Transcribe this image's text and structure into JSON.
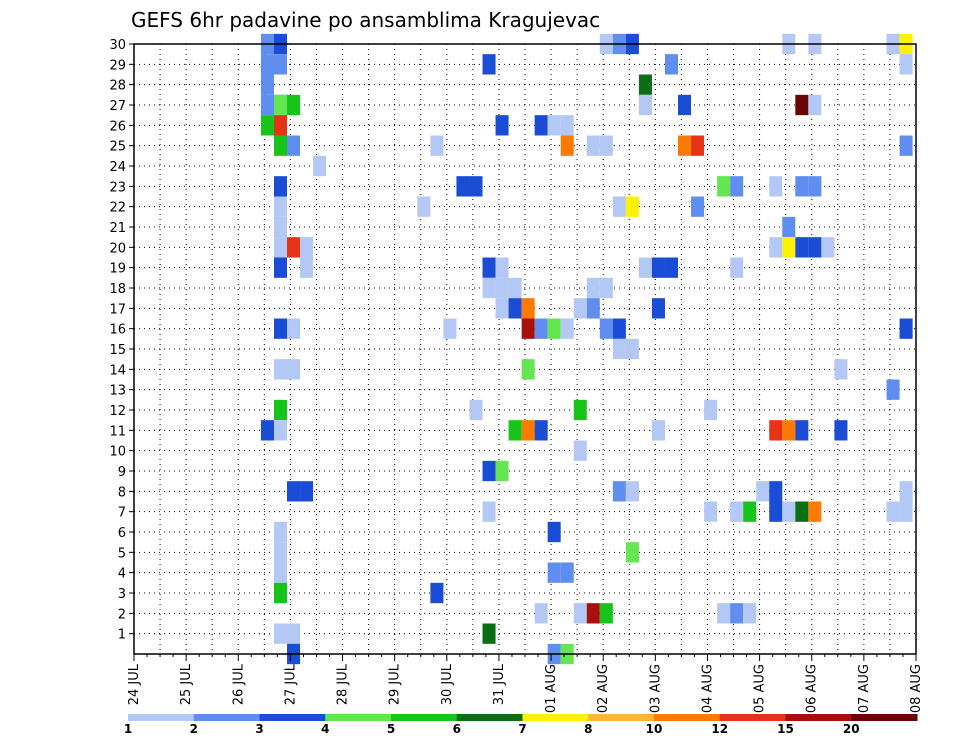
{
  "chart_data": {
    "type": "heatmap",
    "title": "GEFS 6hr padavine po ansamblima Kragujevac",
    "y_ticks": [
      1,
      2,
      3,
      4,
      5,
      6,
      7,
      8,
      9,
      10,
      11,
      12,
      13,
      14,
      15,
      16,
      17,
      18,
      19,
      20,
      21,
      22,
      23,
      24,
      25,
      26,
      27,
      28,
      29,
      30
    ],
    "y_range": [
      0,
      30
    ],
    "x_ticks": [
      "24 JUL",
      "25 JUL",
      "26 JUL",
      "27 JUL",
      "28 JUL",
      "29 JUL",
      "30 JUL",
      "31 JUL",
      "01 AUG",
      "02 AUG",
      "03 AUG",
      "04 AUG",
      "05 AUG",
      "06 AUG",
      "07 AUG",
      "08 AUG"
    ],
    "x_range_days": [
      0,
      15
    ],
    "grid": true,
    "legend": {
      "placement": "bottom",
      "labels": [
        "1",
        "2",
        "3",
        "4",
        "5",
        "6",
        "7",
        "8",
        "10",
        "12",
        "15",
        "20"
      ],
      "colors": [
        "#b4c8f5",
        "#5f8ef0",
        "#1a4cd6",
        "#64e650",
        "#16c41a",
        "#0a6e14",
        "#fff200",
        "#ffb43c",
        "#ff7a00",
        "#e63217",
        "#a8100e",
        "#6a0505"
      ]
    },
    "cells": [
      [
        2.56,
        30,
        1
      ],
      [
        2.81,
        30,
        2
      ],
      [
        2.81,
        29,
        1
      ],
      [
        2.56,
        29,
        1
      ],
      [
        2.56,
        28,
        1
      ],
      [
        2.56,
        27,
        1
      ],
      [
        2.81,
        27,
        2
      ],
      [
        2.81,
        27,
        3
      ],
      [
        3.06,
        27,
        4
      ],
      [
        2.56,
        26,
        4
      ],
      [
        2.81,
        26,
        9
      ],
      [
        2.81,
        25,
        4
      ],
      [
        3.06,
        25,
        1
      ],
      [
        2.81,
        23,
        2
      ],
      [
        2.81,
        22,
        0
      ],
      [
        2.81,
        21,
        0
      ],
      [
        2.81,
        20,
        0
      ],
      [
        3.06,
        20,
        9
      ],
      [
        3.31,
        20,
        0
      ],
      [
        2.81,
        19,
        2
      ],
      [
        3.31,
        19,
        0
      ],
      [
        2.81,
        16,
        2
      ],
      [
        3.06,
        16,
        0
      ],
      [
        2.81,
        14,
        0
      ],
      [
        3.06,
        14,
        0
      ],
      [
        2.81,
        12,
        4
      ],
      [
        2.81,
        11,
        0
      ],
      [
        2.56,
        11,
        2
      ],
      [
        3.06,
        8,
        2
      ],
      [
        3.31,
        8,
        2
      ],
      [
        2.81,
        6,
        0
      ],
      [
        2.81,
        5,
        0
      ],
      [
        2.81,
        4,
        0
      ],
      [
        2.81,
        3,
        4
      ],
      [
        2.81,
        1,
        0
      ],
      [
        3.06,
        1,
        0
      ],
      [
        3.06,
        0,
        2
      ],
      [
        3.56,
        24,
        0
      ],
      [
        5.81,
        25,
        0
      ],
      [
        5.56,
        22,
        0
      ],
      [
        6.06,
        16,
        0
      ],
      [
        5.81,
        3,
        2
      ],
      [
        6.31,
        23,
        2
      ],
      [
        6.56,
        23,
        2
      ],
      [
        6.81,
        29,
        2
      ],
      [
        7.06,
        26,
        2
      ],
      [
        6.81,
        19,
        2
      ],
      [
        7.06,
        19,
        0
      ],
      [
        6.81,
        18,
        0
      ],
      [
        7.06,
        18,
        0
      ],
      [
        7.31,
        18,
        0
      ],
      [
        7.06,
        17,
        0
      ],
      [
        7.31,
        17,
        2
      ],
      [
        7.56,
        17,
        8
      ],
      [
        7.56,
        16,
        10
      ],
      [
        7.81,
        16,
        1
      ],
      [
        8.06,
        16,
        3
      ],
      [
        8.31,
        16,
        0
      ],
      [
        7.56,
        14,
        3
      ],
      [
        6.56,
        12,
        0
      ],
      [
        7.31,
        11,
        4
      ],
      [
        7.56,
        11,
        8
      ],
      [
        6.81,
        9,
        2
      ],
      [
        7.06,
        9,
        3
      ],
      [
        6.81,
        7,
        0
      ],
      [
        6.81,
        1,
        5
      ],
      [
        7.81,
        26,
        2
      ],
      [
        8.06,
        26,
        0
      ],
      [
        8.31,
        26,
        0
      ],
      [
        8.31,
        25,
        8
      ],
      [
        8.81,
        25,
        0
      ],
      [
        9.06,
        25,
        0
      ],
      [
        8.81,
        18,
        0
      ],
      [
        9.06,
        18,
        0
      ],
      [
        8.56,
        17,
        0
      ],
      [
        8.81,
        17,
        1
      ],
      [
        9.06,
        16,
        1
      ],
      [
        9.31,
        16,
        2
      ],
      [
        9.31,
        15,
        0
      ],
      [
        9.56,
        15,
        0
      ],
      [
        8.56,
        12,
        4
      ],
      [
        7.81,
        11,
        2
      ],
      [
        8.56,
        10,
        0
      ],
      [
        9.31,
        8,
        1
      ],
      [
        9.56,
        8,
        0
      ],
      [
        8.06,
        6,
        2
      ],
      [
        9.56,
        5,
        3
      ],
      [
        8.06,
        4,
        1
      ],
      [
        8.31,
        4,
        1
      ],
      [
        7.81,
        2,
        0
      ],
      [
        8.56,
        2,
        0
      ],
      [
        8.81,
        2,
        10
      ],
      [
        9.06,
        2,
        4
      ],
      [
        8.06,
        0,
        1
      ],
      [
        8.31,
        0,
        3
      ],
      [
        9.06,
        30,
        0
      ],
      [
        9.31,
        30,
        1
      ],
      [
        9.56,
        30,
        2
      ],
      [
        9.81,
        28,
        5
      ],
      [
        9.81,
        27,
        0
      ],
      [
        9.31,
        22,
        0
      ],
      [
        9.56,
        22,
        6
      ],
      [
        9.81,
        19,
        0
      ],
      [
        10.06,
        19,
        2
      ],
      [
        10.31,
        19,
        2
      ],
      [
        10.06,
        17,
        2
      ],
      [
        10.06,
        11,
        0
      ],
      [
        10.31,
        29,
        1
      ],
      [
        10.56,
        27,
        2
      ],
      [
        10.56,
        25,
        8
      ],
      [
        10.81,
        25,
        9
      ],
      [
        10.81,
        22,
        1
      ],
      [
        11.06,
        12,
        0
      ],
      [
        11.06,
        7,
        0
      ],
      [
        11.31,
        23,
        3
      ],
      [
        11.56,
        23,
        1
      ],
      [
        11.56,
        19,
        0
      ],
      [
        11.56,
        7,
        0
      ],
      [
        11.81,
        7,
        4
      ],
      [
        11.31,
        2,
        0
      ],
      [
        11.56,
        2,
        1
      ],
      [
        11.81,
        2,
        0
      ],
      [
        12.31,
        23,
        0
      ],
      [
        12.56,
        21,
        1
      ],
      [
        12.31,
        20,
        0
      ],
      [
        12.56,
        20,
        6
      ],
      [
        12.81,
        20,
        2
      ],
      [
        13.06,
        20,
        2
      ],
      [
        13.31,
        20,
        0
      ],
      [
        12.06,
        8,
        0
      ],
      [
        12.31,
        8,
        2
      ],
      [
        12.31,
        7,
        2
      ],
      [
        12.56,
        7,
        0
      ],
      [
        12.81,
        7,
        5
      ],
      [
        13.06,
        7,
        8
      ],
      [
        12.31,
        11,
        9
      ],
      [
        12.56,
        11,
        8
      ],
      [
        12.81,
        11,
        2
      ],
      [
        13.56,
        11,
        2
      ],
      [
        12.81,
        27,
        11
      ],
      [
        13.06,
        27,
        0
      ],
      [
        12.81,
        23,
        1
      ],
      [
        13.06,
        23,
        1
      ],
      [
        12.56,
        30,
        0
      ],
      [
        13.06,
        30,
        0
      ],
      [
        14.56,
        30,
        0
      ],
      [
        14.81,
        30,
        6
      ],
      [
        14.81,
        29,
        0
      ],
      [
        14.81,
        25,
        1
      ],
      [
        14.81,
        16,
        2
      ],
      [
        13.56,
        14,
        0
      ],
      [
        14.56,
        13,
        1
      ],
      [
        14.56,
        7,
        0
      ],
      [
        14.81,
        7,
        0
      ],
      [
        14.81,
        8,
        0
      ]
    ]
  }
}
